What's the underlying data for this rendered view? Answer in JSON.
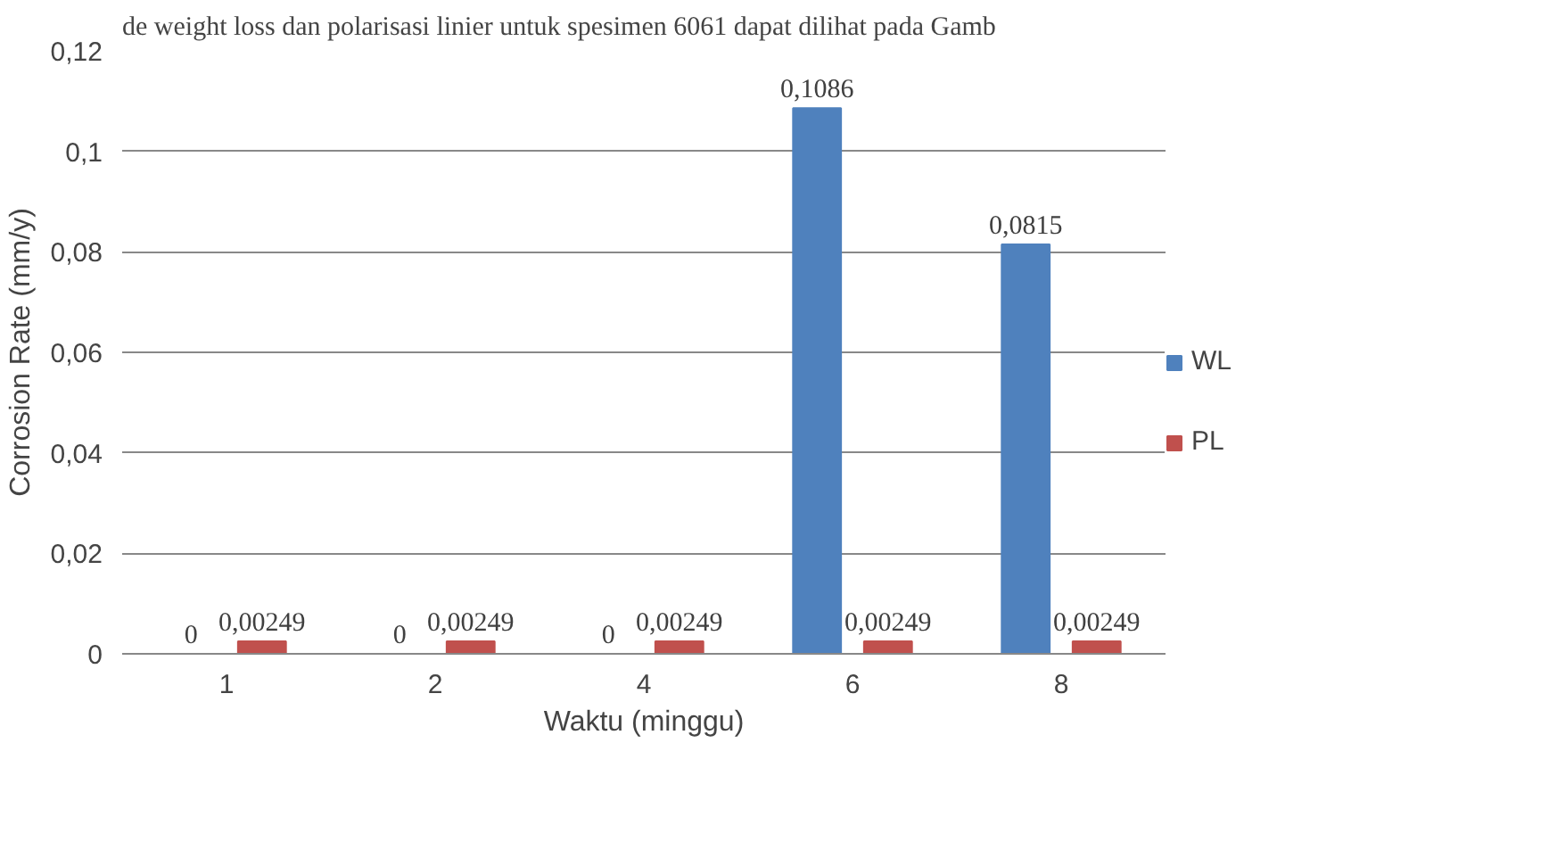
{
  "chart_data": {
    "type": "bar",
    "annotations": [
      "de weight loss dan polarisasi linier untuk spesimen 6061 dapat dilihat pada Gamb"
    ],
    "xlabel": "Waktu (minggu)",
    "ylabel": "Corrosion Rate (mm/y)",
    "categories": [
      "1",
      "2",
      "4",
      "6",
      "8"
    ],
    "series": [
      {
        "name": "WL",
        "color": "#4f81bd",
        "values": [
          0,
          0,
          0,
          0.1086,
          0.0815
        ],
        "value_labels": [
          "0",
          "0",
          "0",
          "0,1086",
          "0,0815"
        ]
      },
      {
        "name": "PL",
        "color": "#c0504d",
        "values": [
          0.00249,
          0.00249,
          0.00249,
          0.00249,
          0.00249
        ],
        "value_labels": [
          "0,00249",
          "0,00249",
          "0,00249",
          "0,00249",
          "0,00249"
        ]
      }
    ],
    "ylim": [
      0,
      0.12
    ],
    "yticks": [
      0,
      {
        "value": 0.02,
        "label": "0,02"
      },
      {
        "value": 0.04,
        "label": "0,04"
      },
      {
        "value": 0.06,
        "label": "0,06"
      },
      {
        "value": 0.08,
        "label": "0,08"
      },
      {
        "value": 0.1,
        "label": "0,1"
      },
      {
        "value": 0.12,
        "label": "0,12"
      }
    ],
    "grid": "y",
    "legend": "right"
  }
}
